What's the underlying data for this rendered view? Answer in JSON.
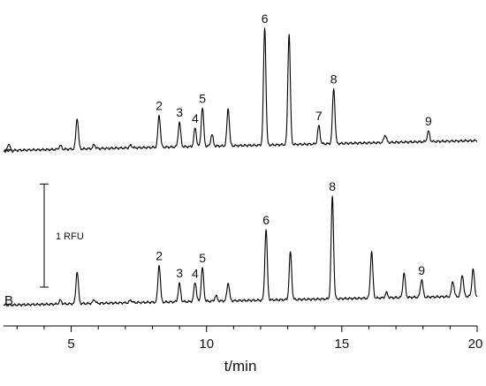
{
  "chart_data": {
    "type": "line",
    "xlabel": "t/min",
    "xlim": [
      2.5,
      20
    ],
    "ylim": [
      0,
      12
    ],
    "x_ticks": [
      "5",
      "10",
      "15",
      "20"
    ],
    "x_tick_values": [
      5,
      10,
      15,
      20
    ],
    "grid": false,
    "series": [
      {
        "name": "A",
        "baseline": 6.5,
        "slope": 0.022,
        "peaks": [
          {
            "t": 4.6,
            "h": 0.15
          },
          {
            "t": 5.22,
            "h": 1.2
          },
          {
            "t": 5.85,
            "h": 0.15
          },
          {
            "t": 7.2,
            "h": 0.1
          },
          {
            "t": 8.25,
            "h": 1.25,
            "label": "2"
          },
          {
            "t": 9.0,
            "h": 0.95,
            "label": "3"
          },
          {
            "t": 9.58,
            "h": 0.72,
            "label": "4"
          },
          {
            "t": 9.85,
            "h": 1.5,
            "label": "5"
          },
          {
            "t": 10.2,
            "h": 0.45
          },
          {
            "t": 10.8,
            "h": 1.45
          },
          {
            "t": 12.15,
            "h": 4.55,
            "label": "6"
          },
          {
            "t": 13.05,
            "h": 4.3
          },
          {
            "t": 14.15,
            "h": 0.7,
            "label": "7"
          },
          {
            "t": 14.7,
            "h": 2.15,
            "label": "8"
          },
          {
            "t": 16.6,
            "h": 0.3
          },
          {
            "t": 18.2,
            "h": 0.4,
            "label": "9"
          }
        ]
      },
      {
        "name": "B",
        "baseline": 0.5,
        "slope": 0.02,
        "peaks": [
          {
            "t": 4.6,
            "h": 0.15
          },
          {
            "t": 5.22,
            "h": 1.25
          },
          {
            "t": 5.85,
            "h": 0.15
          },
          {
            "t": 7.2,
            "h": 0.1
          },
          {
            "t": 8.25,
            "h": 1.45,
            "label": "2"
          },
          {
            "t": 9.0,
            "h": 0.7,
            "label": "3"
          },
          {
            "t": 9.58,
            "h": 0.75,
            "label": "4"
          },
          {
            "t": 9.85,
            "h": 1.3,
            "label": "5"
          },
          {
            "t": 10.35,
            "h": 0.2
          },
          {
            "t": 10.8,
            "h": 0.7
          },
          {
            "t": 12.2,
            "h": 2.75,
            "label": "6"
          },
          {
            "t": 13.1,
            "h": 1.85
          },
          {
            "t": 14.65,
            "h": 3.95,
            "label": "8"
          },
          {
            "t": 16.1,
            "h": 1.8
          },
          {
            "t": 16.65,
            "h": 0.2
          },
          {
            "t": 17.3,
            "h": 0.95
          },
          {
            "t": 17.95,
            "h": 0.7,
            "label": "9"
          },
          {
            "t": 19.1,
            "h": 0.6
          },
          {
            "t": 19.45,
            "h": 0.85
          },
          {
            "t": 19.85,
            "h": 1.05
          }
        ]
      }
    ],
    "annotations": {
      "trace_labels": [
        "A",
        "B"
      ],
      "scale_bar_label": "1 RFU",
      "scale_bar_value": 4
    }
  }
}
